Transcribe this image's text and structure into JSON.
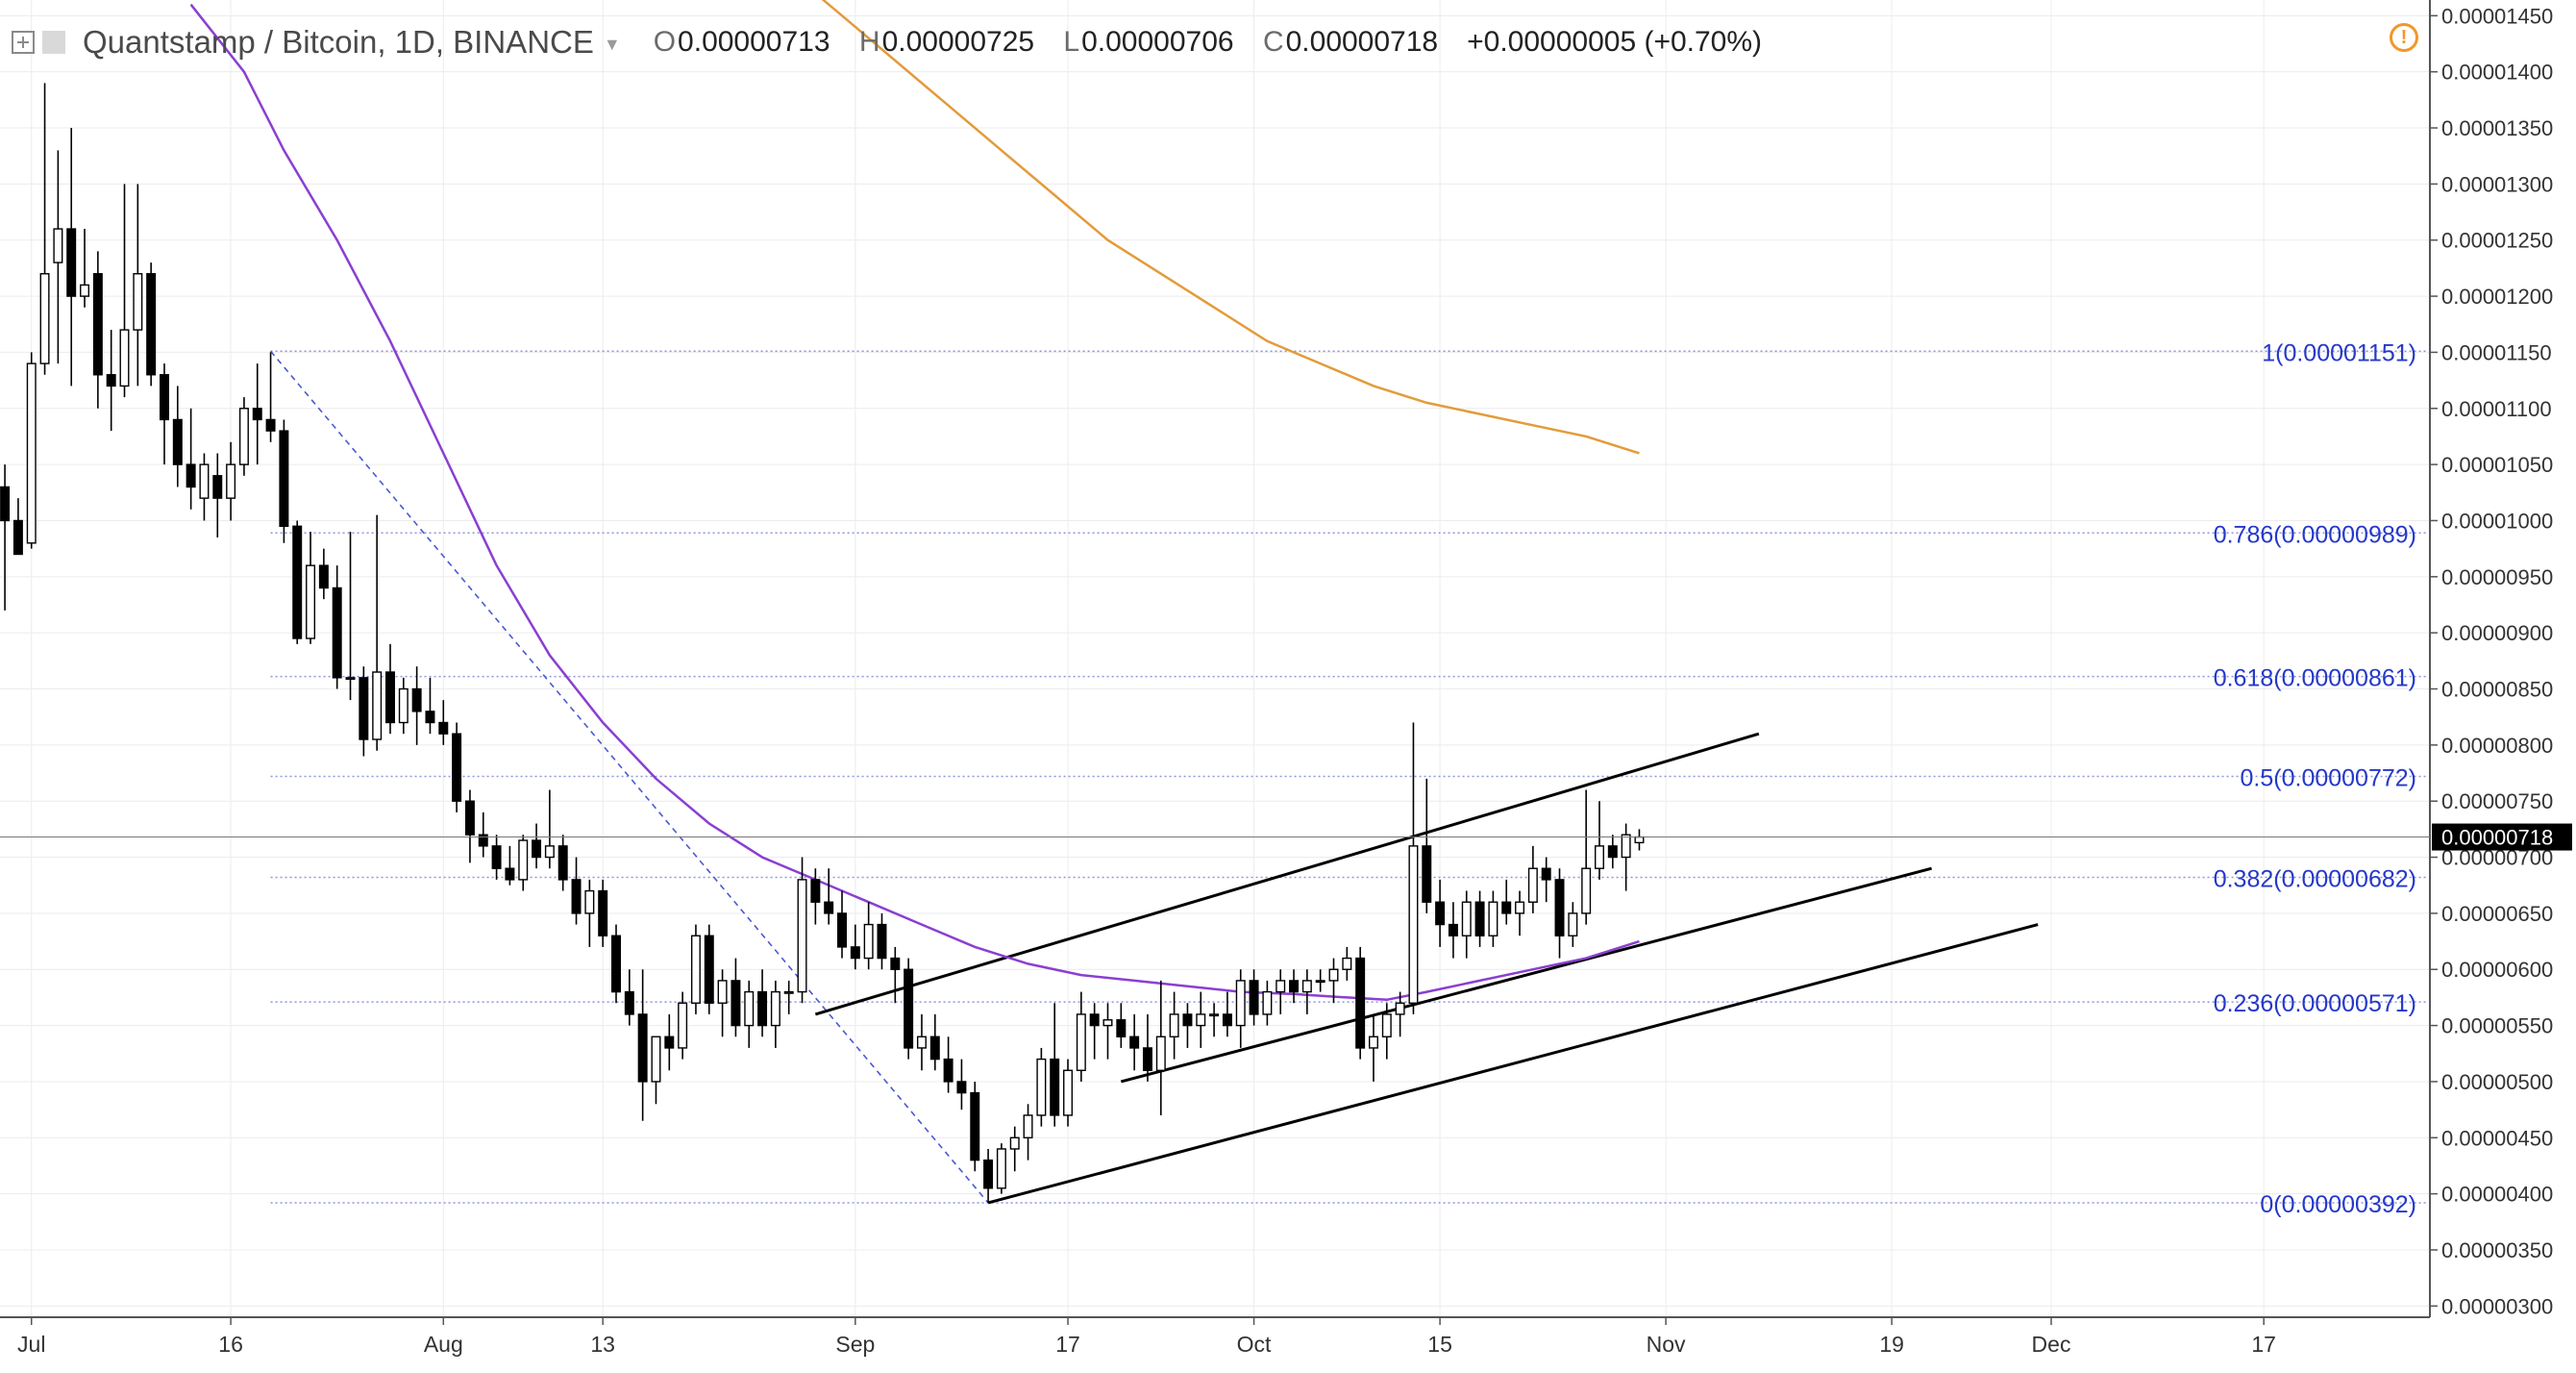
{
  "header": {
    "title": "Quantstamp / Bitcoin, 1D, BINANCE",
    "ohlc": [
      {
        "key": "O",
        "value": "0.00000713"
      },
      {
        "key": "H",
        "value": "0.00000725"
      },
      {
        "key": "L",
        "value": "0.00000706"
      },
      {
        "key": "C",
        "value": "0.00000718"
      }
    ],
    "change": "+0.00000005 (+0.70%)",
    "icons": [
      "expand-icon",
      "symbol-square-icon",
      "dropdown-caret-icon",
      "alert-icon"
    ]
  },
  "colors": {
    "ma_fast": "#8a3fd1",
    "ma_slow": "#e39b3a",
    "fib": "#2538c9",
    "candle_up": "#ffffff",
    "candle_down": "#000000",
    "price_tag_bg": "#000000",
    "price_tag_text": "#ffffff"
  },
  "chart_data": {
    "type": "candlestick",
    "x_axis": {
      "labels": [
        {
          "label": "Jul",
          "day": 1
        },
        {
          "label": "16",
          "day": 16
        },
        {
          "label": "Aug",
          "day": 32
        },
        {
          "label": "13",
          "day": 44
        },
        {
          "label": "Sep",
          "day": 63
        },
        {
          "label": "17",
          "day": 79
        },
        {
          "label": "Oct",
          "day": 93
        },
        {
          "label": "15",
          "day": 107
        },
        {
          "label": "Nov",
          "day": 124
        },
        {
          "label": "19",
          "day": 141
        },
        {
          "label": "Dec",
          "day": 153
        },
        {
          "label": "17",
          "day": 169
        }
      ],
      "day_range": [
        -0.5,
        181.5
      ]
    },
    "y_axis": {
      "ticks": [
        "0.00000300",
        "0.00000350",
        "0.00000400",
        "0.00000450",
        "0.00000500",
        "0.00000550",
        "0.00000600",
        "0.00000650",
        "0.00000700",
        "0.00000750",
        "0.00000800",
        "0.00000850",
        "0.00000900",
        "0.00000950",
        "0.00001000",
        "0.00001050",
        "0.00001100",
        "0.00001150",
        "0.00001200",
        "0.00001250",
        "0.00001300",
        "0.00001350",
        "0.00001400",
        "0.00001450"
      ],
      "range": [
        2.9e-06,
        1.464e-05
      ],
      "current_price": "0.00000718",
      "current_value": 7.18e-06
    },
    "candles": [
      [
        -1,
        1.03e-05,
        1.05e-05,
        9.2e-06,
        1e-05
      ],
      [
        0,
        1e-05,
        1.02e-05,
        9.7e-06,
        9.7e-06
      ],
      [
        1,
        9.8e-06,
        1.15e-05,
        9.75e-06,
        1.14e-05
      ],
      [
        2,
        1.14e-05,
        1.39e-05,
        1.13e-05,
        1.22e-05
      ],
      [
        3,
        1.23e-05,
        1.33e-05,
        1.14e-05,
        1.26e-05
      ],
      [
        4,
        1.26e-05,
        1.35e-05,
        1.12e-05,
        1.2e-05
      ],
      [
        5,
        1.2e-05,
        1.26e-05,
        1.19e-05,
        1.21e-05
      ],
      [
        6,
        1.22e-05,
        1.24e-05,
        1.1e-05,
        1.13e-05
      ],
      [
        7,
        1.13e-05,
        1.17e-05,
        1.08e-05,
        1.12e-05
      ],
      [
        8,
        1.12e-05,
        1.3e-05,
        1.11e-05,
        1.17e-05
      ],
      [
        9,
        1.17e-05,
        1.3e-05,
        1.12e-05,
        1.22e-05
      ],
      [
        10,
        1.22e-05,
        1.23e-05,
        1.12e-05,
        1.13e-05
      ],
      [
        11,
        1.13e-05,
        1.14e-05,
        1.05e-05,
        1.09e-05
      ],
      [
        12,
        1.09e-05,
        1.12e-05,
        1.03e-05,
        1.05e-05
      ],
      [
        13,
        1.05e-05,
        1.1e-05,
        1.01e-05,
        1.03e-05
      ],
      [
        14,
        1.02e-05,
        1.06e-05,
        1e-05,
        1.05e-05
      ],
      [
        15,
        1.04e-05,
        1.06e-05,
        9.85e-06,
        1.02e-05
      ],
      [
        16,
        1.02e-05,
        1.07e-05,
        1e-05,
        1.05e-05
      ],
      [
        17,
        1.05e-05,
        1.11e-05,
        1.04e-05,
        1.1e-05
      ],
      [
        18,
        1.1e-05,
        1.14e-05,
        1.05e-05,
        1.09e-05
      ],
      [
        19,
        1.09e-05,
        1.15e-05,
        1.07e-05,
        1.08e-05
      ],
      [
        20,
        1.08e-05,
        1.09e-05,
        9.8e-06,
        9.95e-06
      ],
      [
        21,
        9.95e-06,
        1e-05,
        8.9e-06,
        8.95e-06
      ],
      [
        22,
        8.95e-06,
        9.9e-06,
        8.9e-06,
        9.6e-06
      ],
      [
        23,
        9.6e-06,
        9.75e-06,
        9.3e-06,
        9.4e-06
      ],
      [
        24,
        9.4e-06,
        9.6e-06,
        8.5e-06,
        8.6e-06
      ],
      [
        25,
        8.6e-06,
        9.9e-06,
        8.4e-06,
        8.6e-06
      ],
      [
        26,
        8.6e-06,
        8.7e-06,
        7.9e-06,
        8.05e-06
      ],
      [
        27,
        8.05e-06,
        1.005e-05,
        7.95e-06,
        8.65e-06
      ],
      [
        28,
        8.65e-06,
        8.9e-06,
        8.1e-06,
        8.2e-06
      ],
      [
        29,
        8.2e-06,
        8.6e-06,
        8.1e-06,
        8.5e-06
      ],
      [
        30,
        8.5e-06,
        8.7e-06,
        8e-06,
        8.3e-06
      ],
      [
        31,
        8.3e-06,
        8.6e-06,
        8.1e-06,
        8.2e-06
      ],
      [
        32,
        8.2e-06,
        8.4e-06,
        8e-06,
        8.1e-06
      ],
      [
        33,
        8.1e-06,
        8.2e-06,
        7.4e-06,
        7.5e-06
      ],
      [
        34,
        7.5e-06,
        7.6e-06,
        6.95e-06,
        7.2e-06
      ],
      [
        35,
        7.2e-06,
        7.4e-06,
        7e-06,
        7.1e-06
      ],
      [
        36,
        7.1e-06,
        7.2e-06,
        6.8e-06,
        6.9e-06
      ],
      [
        37,
        6.9e-06,
        7.1e-06,
        6.75e-06,
        6.8e-06
      ],
      [
        38,
        6.8e-06,
        7.2e-06,
        6.7e-06,
        7.15e-06
      ],
      [
        39,
        7.15e-06,
        7.3e-06,
        6.9e-06,
        7e-06
      ],
      [
        40,
        7e-06,
        7.6e-06,
        6.9e-06,
        7.1e-06
      ],
      [
        41,
        7.1e-06,
        7.2e-06,
        6.7e-06,
        6.8e-06
      ],
      [
        42,
        6.8e-06,
        7e-06,
        6.4e-06,
        6.5e-06
      ],
      [
        43,
        6.5e-06,
        6.8e-06,
        6.2e-06,
        6.7e-06
      ],
      [
        44,
        6.7e-06,
        6.8e-06,
        6.2e-06,
        6.3e-06
      ],
      [
        45,
        6.3e-06,
        6.4e-06,
        5.7e-06,
        5.8e-06
      ],
      [
        46,
        5.8e-06,
        6e-06,
        5.5e-06,
        5.6e-06
      ],
      [
        47,
        5.6e-06,
        6e-06,
        4.65e-06,
        5e-06
      ],
      [
        48,
        5e-06,
        5.4e-06,
        4.8e-06,
        5.4e-06
      ],
      [
        49,
        5.4e-06,
        5.6e-06,
        5.1e-06,
        5.3e-06
      ],
      [
        50,
        5.3e-06,
        5.8e-06,
        5.2e-06,
        5.7e-06
      ],
      [
        51,
        5.7e-06,
        6.4e-06,
        5.6e-06,
        6.3e-06
      ],
      [
        52,
        6.3e-06,
        6.4e-06,
        5.6e-06,
        5.7e-06
      ],
      [
        53,
        5.7e-06,
        6e-06,
        5.4e-06,
        5.9e-06
      ],
      [
        54,
        5.9e-06,
        6.1e-06,
        5.4e-06,
        5.5e-06
      ],
      [
        55,
        5.5e-06,
        5.9e-06,
        5.3e-06,
        5.8e-06
      ],
      [
        56,
        5.8e-06,
        6e-06,
        5.4e-06,
        5.5e-06
      ],
      [
        57,
        5.5e-06,
        5.9e-06,
        5.3e-06,
        5.8e-06
      ],
      [
        58,
        5.8e-06,
        5.9e-06,
        5.6e-06,
        5.8e-06
      ],
      [
        59,
        5.8e-06,
        7e-06,
        5.7e-06,
        6.8e-06
      ],
      [
        60,
        6.8e-06,
        6.9e-06,
        6.4e-06,
        6.6e-06
      ],
      [
        61,
        6.6e-06,
        6.9e-06,
        6.4e-06,
        6.5e-06
      ],
      [
        62,
        6.5e-06,
        6.7e-06,
        6.1e-06,
        6.2e-06
      ],
      [
        63,
        6.2e-06,
        6.4e-06,
        6e-06,
        6.1e-06
      ],
      [
        64,
        6.1e-06,
        6.6e-06,
        6e-06,
        6.4e-06
      ],
      [
        65,
        6.4e-06,
        6.5e-06,
        6e-06,
        6.1e-06
      ],
      [
        66,
        6.1e-06,
        6.2e-06,
        5.7e-06,
        6e-06
      ],
      [
        67,
        6e-06,
        6.1e-06,
        5.2e-06,
        5.3e-06
      ],
      [
        68,
        5.3e-06,
        5.6e-06,
        5.1e-06,
        5.4e-06
      ],
      [
        69,
        5.4e-06,
        5.6e-06,
        5.1e-06,
        5.2e-06
      ],
      [
        70,
        5.2e-06,
        5.4e-06,
        4.9e-06,
        5e-06
      ],
      [
        71,
        5e-06,
        5.2e-06,
        4.75e-06,
        4.9e-06
      ],
      [
        72,
        4.9e-06,
        5e-06,
        4.2e-06,
        4.3e-06
      ],
      [
        73,
        4.3e-06,
        4.4e-06,
        3.92e-06,
        4.05e-06
      ],
      [
        74,
        4.05e-06,
        4.45e-06,
        4e-06,
        4.4e-06
      ],
      [
        75,
        4.4e-06,
        4.6e-06,
        4.2e-06,
        4.5e-06
      ],
      [
        76,
        4.5e-06,
        4.8e-06,
        4.3e-06,
        4.7e-06
      ],
      [
        77,
        4.7e-06,
        5.3e-06,
        4.6e-06,
        5.2e-06
      ],
      [
        78,
        5.2e-06,
        5.7e-06,
        4.6e-06,
        4.7e-06
      ],
      [
        79,
        4.7e-06,
        5.2e-06,
        4.6e-06,
        5.1e-06
      ],
      [
        80,
        5.1e-06,
        5.8e-06,
        5e-06,
        5.6e-06
      ],
      [
        81,
        5.6e-06,
        5.7e-06,
        5.2e-06,
        5.5e-06
      ],
      [
        82,
        5.5e-06,
        5.7e-06,
        5.2e-06,
        5.55e-06
      ],
      [
        83,
        5.55e-06,
        5.7e-06,
        5.3e-06,
        5.4e-06
      ],
      [
        84,
        5.4e-06,
        5.6e-06,
        5.1e-06,
        5.3e-06
      ],
      [
        85,
        5.3e-06,
        5.6e-06,
        5e-06,
        5.1e-06
      ],
      [
        86,
        5.1e-06,
        5.9e-06,
        4.7e-06,
        5.4e-06
      ],
      [
        87,
        5.4e-06,
        5.8e-06,
        5.2e-06,
        5.6e-06
      ],
      [
        88,
        5.6e-06,
        5.7e-06,
        5.3e-06,
        5.5e-06
      ],
      [
        89,
        5.5e-06,
        5.8e-06,
        5.3e-06,
        5.6e-06
      ],
      [
        90,
        5.6e-06,
        5.7e-06,
        5.4e-06,
        5.6e-06
      ],
      [
        91,
        5.6e-06,
        5.8e-06,
        5.4e-06,
        5.5e-06
      ],
      [
        92,
        5.5e-06,
        6e-06,
        5.3e-06,
        5.9e-06
      ],
      [
        93,
        5.9e-06,
        6e-06,
        5.5e-06,
        5.6e-06
      ],
      [
        94,
        5.6e-06,
        5.9e-06,
        5.5e-06,
        5.8e-06
      ],
      [
        95,
        5.8e-06,
        6e-06,
        5.6e-06,
        5.9e-06
      ],
      [
        96,
        5.9e-06,
        6e-06,
        5.7e-06,
        5.8e-06
      ],
      [
        97,
        5.8e-06,
        6e-06,
        5.6e-06,
        5.9e-06
      ],
      [
        98,
        5.9e-06,
        6e-06,
        5.8e-06,
        5.9e-06
      ],
      [
        99,
        5.9e-06,
        6.1e-06,
        5.7e-06,
        6e-06
      ],
      [
        100,
        6e-06,
        6.2e-06,
        5.9e-06,
        6.1e-06
      ],
      [
        101,
        6.1e-06,
        6.2e-06,
        5.2e-06,
        5.3e-06
      ],
      [
        102,
        5.3e-06,
        5.6e-06,
        5e-06,
        5.4e-06
      ],
      [
        103,
        5.4e-06,
        5.7e-06,
        5.2e-06,
        5.6e-06
      ],
      [
        104,
        5.6e-06,
        5.8e-06,
        5.4e-06,
        5.7e-06
      ],
      [
        105,
        5.7e-06,
        8.2e-06,
        5.6e-06,
        7.1e-06
      ],
      [
        106,
        7.1e-06,
        7.7e-06,
        6.5e-06,
        6.6e-06
      ],
      [
        107,
        6.6e-06,
        6.8e-06,
        6.2e-06,
        6.4e-06
      ],
      [
        108,
        6.4e-06,
        6.6e-06,
        6.1e-06,
        6.3e-06
      ],
      [
        109,
        6.3e-06,
        6.7e-06,
        6.1e-06,
        6.6e-06
      ],
      [
        110,
        6.6e-06,
        6.7e-06,
        6.2e-06,
        6.3e-06
      ],
      [
        111,
        6.3e-06,
        6.7e-06,
        6.2e-06,
        6.6e-06
      ],
      [
        112,
        6.6e-06,
        6.8e-06,
        6.4e-06,
        6.5e-06
      ],
      [
        113,
        6.5e-06,
        6.7e-06,
        6.3e-06,
        6.6e-06
      ],
      [
        114,
        6.6e-06,
        7.1e-06,
        6.5e-06,
        6.9e-06
      ],
      [
        115,
        6.9e-06,
        7e-06,
        6.6e-06,
        6.8e-06
      ],
      [
        116,
        6.8e-06,
        6.9e-06,
        6.1e-06,
        6.3e-06
      ],
      [
        117,
        6.3e-06,
        6.6e-06,
        6.2e-06,
        6.5e-06
      ],
      [
        118,
        6.5e-06,
        7.6e-06,
        6.4e-06,
        6.9e-06
      ],
      [
        119,
        6.9e-06,
        7.5e-06,
        6.8e-06,
        7.1e-06
      ],
      [
        120,
        7.1e-06,
        7.2e-06,
        6.9e-06,
        7e-06
      ],
      [
        121,
        7e-06,
        7.3e-06,
        6.7e-06,
        7.2e-06
      ],
      [
        122,
        7.13e-06,
        7.25e-06,
        7.06e-06,
        7.18e-06
      ]
    ],
    "moving_averages": [
      {
        "color": "#8a3fd1",
        "points": [
          [
            13,
            1.46e-05
          ],
          [
            17,
            1.4e-05
          ],
          [
            20,
            1.33e-05
          ],
          [
            24,
            1.25e-05
          ],
          [
            28,
            1.16e-05
          ],
          [
            32,
            1.06e-05
          ],
          [
            36,
            9.6e-06
          ],
          [
            40,
            8.8e-06
          ],
          [
            44,
            8.2e-06
          ],
          [
            48,
            7.7e-06
          ],
          [
            52,
            7.3e-06
          ],
          [
            56,
            7e-06
          ],
          [
            60,
            6.8e-06
          ],
          [
            64,
            6.6e-06
          ],
          [
            68,
            6.4e-06
          ],
          [
            72,
            6.2e-06
          ],
          [
            76,
            6.05e-06
          ],
          [
            80,
            5.95e-06
          ],
          [
            84,
            5.9e-06
          ],
          [
            88,
            5.85e-06
          ],
          [
            92,
            5.8e-06
          ],
          [
            96,
            5.78e-06
          ],
          [
            100,
            5.75e-06
          ],
          [
            103,
            5.73e-06
          ],
          [
            106,
            5.8e-06
          ],
          [
            110,
            5.9e-06
          ],
          [
            114,
            6e-06
          ],
          [
            118,
            6.1e-06
          ],
          [
            122,
            6.25e-06
          ]
        ]
      },
      {
        "color": "#e39b3a",
        "points": [
          [
            58,
            1.49e-05
          ],
          [
            62,
            1.45e-05
          ],
          [
            66,
            1.41e-05
          ],
          [
            70,
            1.37e-05
          ],
          [
            74,
            1.33e-05
          ],
          [
            78,
            1.29e-05
          ],
          [
            82,
            1.25e-05
          ],
          [
            86,
            1.22e-05
          ],
          [
            90,
            1.19e-05
          ],
          [
            94,
            1.16e-05
          ],
          [
            98,
            1.14e-05
          ],
          [
            102,
            1.12e-05
          ],
          [
            106,
            1.105e-05
          ],
          [
            110,
            1.095e-05
          ],
          [
            114,
            1.085e-05
          ],
          [
            118,
            1.075e-05
          ],
          [
            122,
            1.06e-05
          ]
        ]
      }
    ],
    "fibonacci": [
      {
        "label": "1(0.00001151)",
        "value": 1.151e-05
      },
      {
        "label": "0.786(0.00000989)",
        "value": 9.89e-06
      },
      {
        "label": "0.618(0.00000861)",
        "value": 8.61e-06
      },
      {
        "label": "0.5(0.00000772)",
        "value": 7.72e-06
      },
      {
        "label": "0.382(0.00000682)",
        "value": 6.82e-06
      },
      {
        "label": "0.236(0.00000571)",
        "value": 5.71e-06
      },
      {
        "label": "0(0.00000392)",
        "value": 3.92e-06
      }
    ],
    "fib_start_day": 19,
    "fib_dashed_from": [
      19,
      1.151e-05
    ],
    "fib_dashed_to": [
      73,
      3.92e-06
    ],
    "trendlines": [
      {
        "from": [
          60,
          5.6e-06
        ],
        "to": [
          131,
          8.1e-06
        ]
      },
      {
        "from": [
          83,
          5e-06
        ],
        "to": [
          144,
          6.9e-06
        ]
      },
      {
        "from": [
          73,
          3.92e-06
        ],
        "to": [
          152,
          6.4e-06
        ]
      }
    ]
  }
}
